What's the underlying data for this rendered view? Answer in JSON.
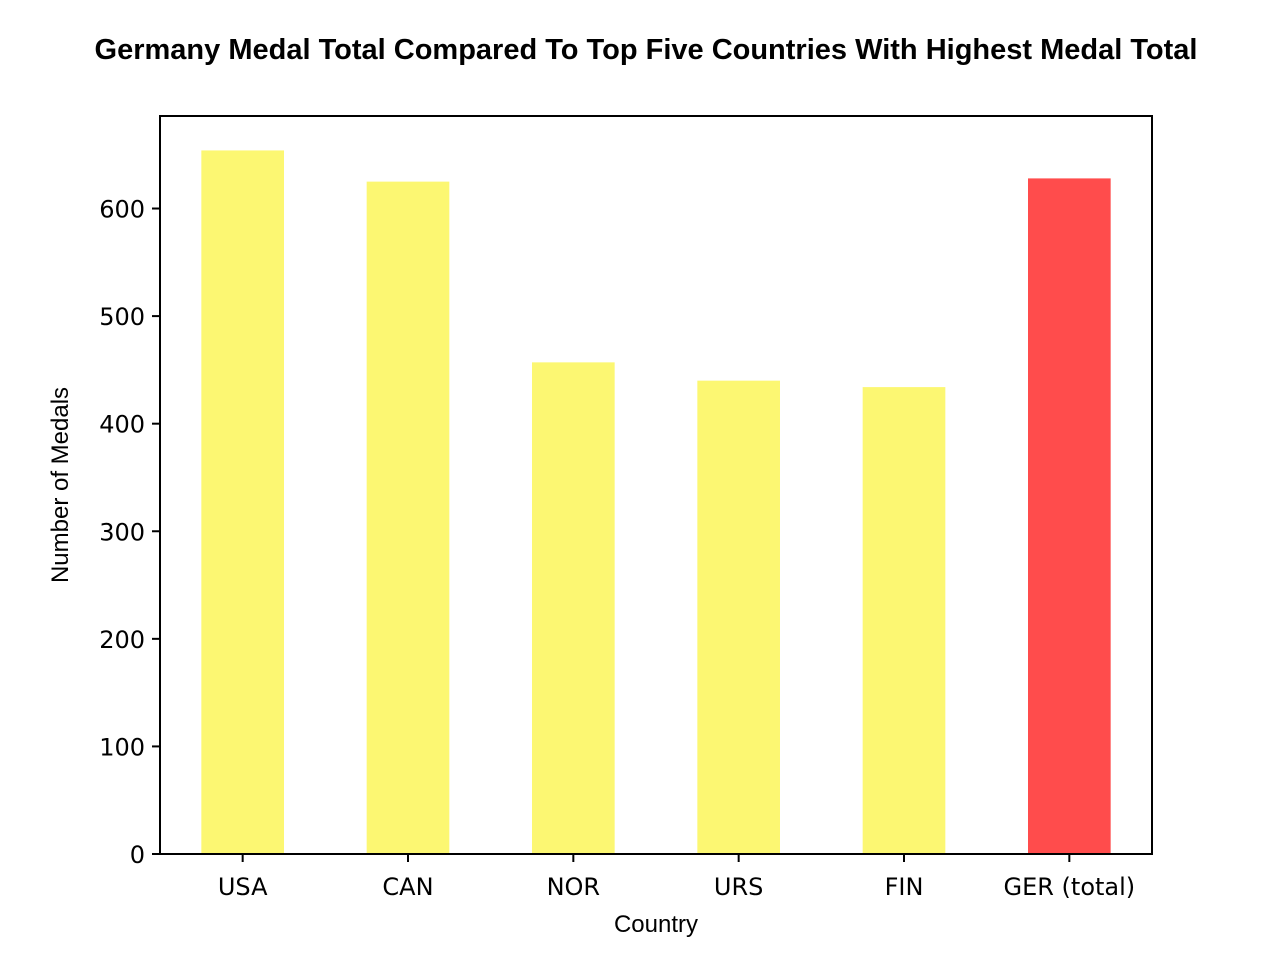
{
  "chart_data": {
    "type": "bar",
    "title": "Germany Medal Total Compared To Top Five Countries With Highest Medal Total",
    "xlabel": "Country",
    "ylabel": "Number of Medals",
    "categories": [
      "USA",
      "CAN",
      "NOR",
      "URS",
      "FIN",
      "GER (total)"
    ],
    "values": [
      654,
      625,
      457,
      440,
      434,
      628
    ],
    "colors": [
      "#fcf772",
      "#fcf772",
      "#fcf772",
      "#fcf772",
      "#fcf772",
      "#ff4c4c"
    ],
    "ylim": [
      0,
      686
    ],
    "yticks": [
      0,
      100,
      200,
      300,
      400,
      500,
      600
    ],
    "grid": false,
    "legend": "none"
  }
}
